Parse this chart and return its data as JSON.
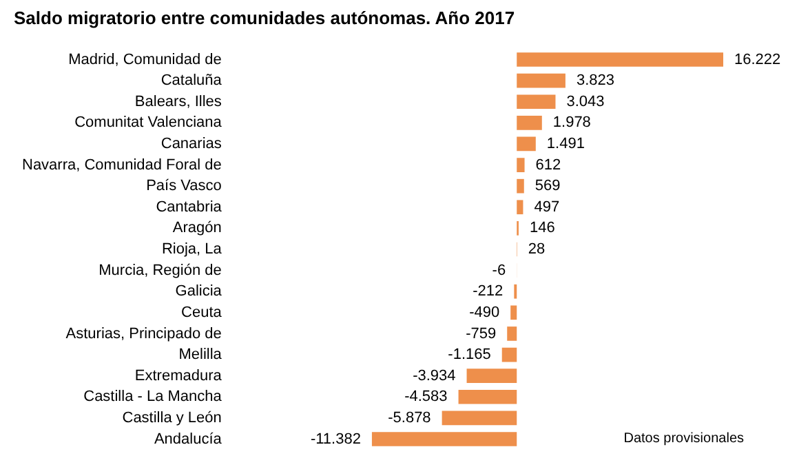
{
  "chart_data": {
    "type": "bar",
    "orientation": "horizontal",
    "title": "Saldo migratorio entre comunidades autónomas. Año 2017",
    "categories": [
      "Madrid, Comunidad de",
      "Cataluña",
      "Balears, Illes",
      "Comunitat Valenciana",
      "Canarias",
      "Navarra, Comunidad Foral de",
      "País Vasco",
      "Cantabria",
      "Aragón",
      "Rioja, La",
      "Murcia, Región de",
      "Galicia",
      "Ceuta",
      "Asturias, Principado de",
      "Melilla",
      "Extremadura",
      "Castilla - La Mancha",
      "Castilla y León",
      "Andalucía"
    ],
    "values": [
      16222,
      3823,
      3043,
      1978,
      1491,
      612,
      569,
      497,
      146,
      28,
      -6,
      -212,
      -490,
      -759,
      -1165,
      -3934,
      -4583,
      -5878,
      -11382
    ],
    "value_labels": [
      "16.222",
      "3.823",
      "3.043",
      "1.978",
      "1.491",
      "612",
      "569",
      "497",
      "146",
      "28",
      "-6",
      "-212",
      "-490",
      "-759",
      "-1.165",
      "-3.934",
      "-4.583",
      "-5.878",
      "-11.382"
    ],
    "color": "#ee8f4b",
    "grid": false,
    "legend": false,
    "annotations": [
      "Datos provisionales"
    ]
  }
}
